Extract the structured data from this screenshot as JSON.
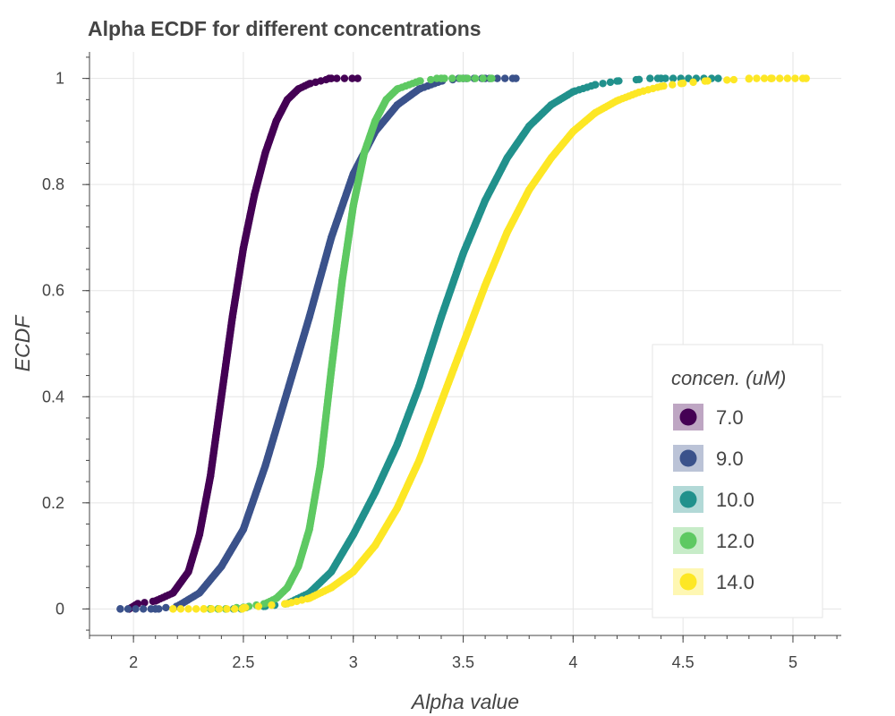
{
  "chart_data": {
    "type": "scatter",
    "title": "Alpha ECDF for different concentrations",
    "xlabel": "Alpha value",
    "ylabel": "ECDF",
    "xlim": [
      1.8,
      5.22
    ],
    "ylim": [
      -0.05,
      1.05
    ],
    "x_ticks": [
      "2",
      "2.5",
      "3",
      "3.5",
      "4",
      "4.5",
      "5"
    ],
    "y_ticks": [
      "0",
      "0.2",
      "0.4",
      "0.6",
      "0.8",
      "1"
    ],
    "grid": true,
    "legend": {
      "title": "concen. (uM)",
      "position": "bottom-right"
    },
    "series": [
      {
        "name": "7.0",
        "color": "#440154",
        "x": [
          1.98,
          2.02,
          2.1,
          2.18,
          2.25,
          2.3,
          2.35,
          2.4,
          2.45,
          2.5,
          2.55,
          2.6,
          2.65,
          2.7,
          2.75,
          2.8,
          2.9,
          3.02
        ],
        "y": [
          0,
          0.01,
          0.015,
          0.03,
          0.07,
          0.14,
          0.25,
          0.4,
          0.55,
          0.68,
          0.78,
          0.86,
          0.92,
          0.96,
          0.98,
          0.99,
          1,
          1
        ]
      },
      {
        "name": "9.0",
        "color": "#3b528b",
        "x": [
          1.94,
          2.1,
          2.2,
          2.3,
          2.4,
          2.5,
          2.6,
          2.7,
          2.8,
          2.9,
          3.0,
          3.1,
          3.2,
          3.3,
          3.4,
          3.5,
          3.6,
          3.74
        ],
        "y": [
          0,
          0,
          0.005,
          0.03,
          0.08,
          0.15,
          0.27,
          0.41,
          0.55,
          0.7,
          0.82,
          0.9,
          0.95,
          0.98,
          0.995,
          1,
          1,
          1
        ]
      },
      {
        "name": "10.0",
        "color": "#21918c",
        "x": [
          2.35,
          2.5,
          2.6,
          2.7,
          2.8,
          2.9,
          3.0,
          3.1,
          3.2,
          3.3,
          3.4,
          3.5,
          3.6,
          3.7,
          3.8,
          3.9,
          4.0,
          4.1,
          4.2,
          4.3,
          4.4,
          4.66
        ],
        "y": [
          0,
          0.002,
          0.005,
          0.01,
          0.03,
          0.07,
          0.14,
          0.22,
          0.31,
          0.42,
          0.55,
          0.67,
          0.77,
          0.85,
          0.91,
          0.95,
          0.975,
          0.988,
          0.995,
          0.998,
          1,
          1
        ]
      },
      {
        "name": "12.0",
        "color": "#5ec962",
        "x": [
          2.35,
          2.5,
          2.6,
          2.65,
          2.7,
          2.75,
          2.8,
          2.85,
          2.9,
          2.95,
          3.0,
          3.05,
          3.1,
          3.15,
          3.2,
          3.3,
          3.4,
          3.5,
          3.63
        ],
        "y": [
          0,
          0.003,
          0.01,
          0.02,
          0.04,
          0.08,
          0.15,
          0.27,
          0.45,
          0.62,
          0.76,
          0.86,
          0.92,
          0.96,
          0.98,
          0.995,
          1,
          1,
          1
        ]
      },
      {
        "name": "14.0",
        "color": "#fde725",
        "x": [
          2.18,
          2.32,
          2.5,
          2.7,
          2.8,
          2.9,
          3.0,
          3.1,
          3.2,
          3.3,
          3.4,
          3.5,
          3.6,
          3.7,
          3.8,
          3.9,
          4.0,
          4.1,
          4.2,
          4.3,
          4.4,
          4.5,
          4.6,
          4.7,
          4.8,
          4.9,
          5.06
        ],
        "y": [
          0,
          0,
          0.002,
          0.01,
          0.02,
          0.04,
          0.07,
          0.12,
          0.19,
          0.28,
          0.39,
          0.5,
          0.61,
          0.71,
          0.79,
          0.85,
          0.9,
          0.935,
          0.958,
          0.974,
          0.985,
          0.991,
          0.995,
          0.997,
          0.999,
          1,
          1
        ]
      }
    ]
  }
}
